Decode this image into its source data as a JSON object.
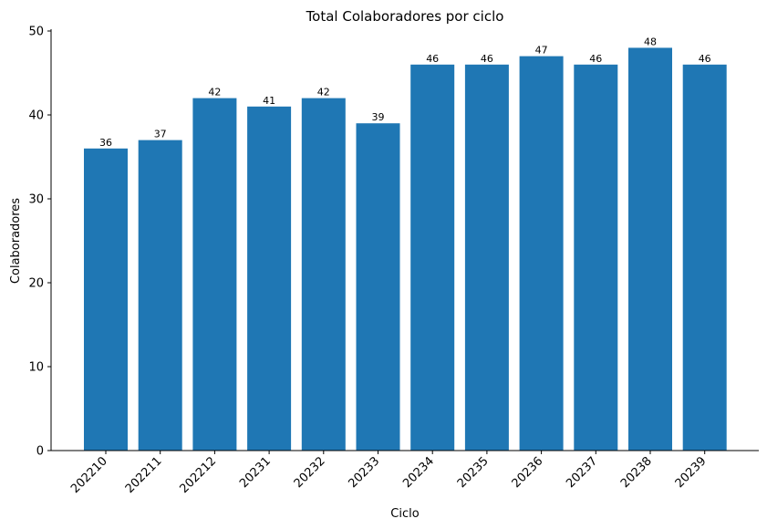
{
  "chart_data": {
    "type": "bar",
    "title": "Total Colaboradores por ciclo",
    "xlabel": "Ciclo",
    "ylabel": "Colaboradores",
    "categories": [
      "202210",
      "202211",
      "202212",
      "20231",
      "20232",
      "20233",
      "20234",
      "20235",
      "20236",
      "20237",
      "20238",
      "20239"
    ],
    "values": [
      36,
      37,
      42,
      41,
      42,
      39,
      46,
      46,
      47,
      46,
      48,
      46
    ],
    "ylim": [
      0,
      50
    ],
    "yticks": [
      0,
      10,
      20,
      30,
      40,
      50
    ],
    "bar_color": "#1f77b4",
    "grid": false,
    "data_labels": true
  }
}
